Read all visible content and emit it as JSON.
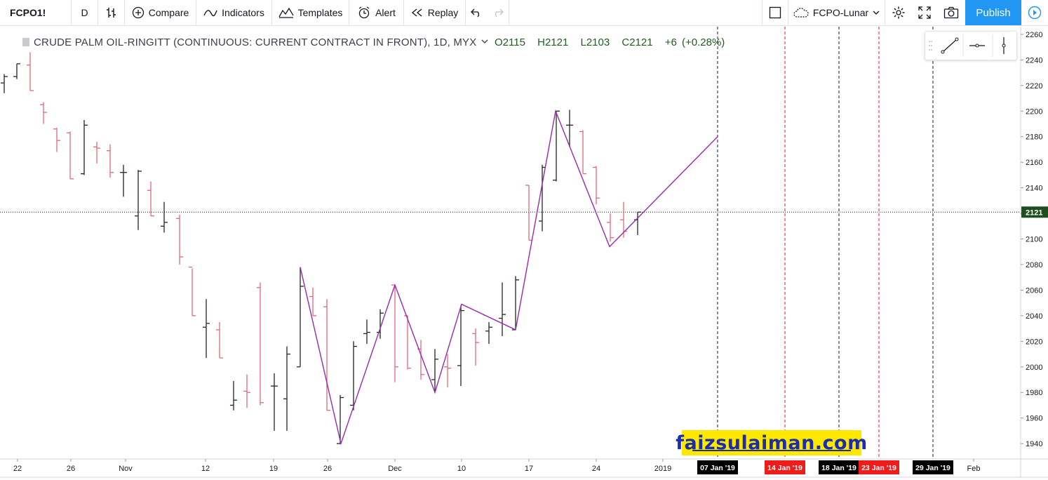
{
  "toolbar": {
    "symbol": "FCPO1!",
    "interval": "D",
    "compare": "Compare",
    "indicators": "Indicators",
    "templates": "Templates",
    "alert": "Alert",
    "replay": "Replay",
    "layout_name": "FCPO-Lunar",
    "publish": "Publish"
  },
  "legend": {
    "title": "CRUDE PALM OIL-RINGITT (CONTINUOUS: CURRENT CONTRACT IN FRONT), 1D, MYX",
    "open": "O2115",
    "high": "H2121",
    "low": "L2103",
    "close": "C2121",
    "change": "+6 (+0.28%)"
  },
  "price_label": "2121",
  "watermark": "faizsulaiman.com",
  "colors": {
    "up": "#1e2a1e",
    "down": "#e0687a",
    "zigzag": "#9c27b0",
    "publish": "#2196f3",
    "price_tag": "#1f4d1f"
  },
  "chart_data": {
    "type": "ohlc-bar",
    "ylim": [
      1928,
      2266
    ],
    "y_ticks": [
      1940,
      1960,
      1980,
      2000,
      2020,
      2040,
      2060,
      2080,
      2100,
      2120,
      2140,
      2160,
      2180,
      2200,
      2220,
      2240,
      2260
    ],
    "x_ticks": [
      {
        "label": "22",
        "x": 25
      },
      {
        "label": "26",
        "x": 101
      },
      {
        "label": "Nov",
        "x": 179
      },
      {
        "label": "12",
        "x": 293
      },
      {
        "label": "19",
        "x": 390
      },
      {
        "label": "26",
        "x": 467
      },
      {
        "label": "Dec",
        "x": 563
      },
      {
        "label": "10",
        "x": 658
      },
      {
        "label": "17",
        "x": 754
      },
      {
        "label": "24",
        "x": 850
      },
      {
        "label": "2019",
        "x": 945
      },
      {
        "label": "Feb",
        "x": 1388
      }
    ],
    "date_markers": [
      {
        "label": "07 Jan '19",
        "x": 1023,
        "style": "black"
      },
      {
        "label": "14 Jan '19",
        "x": 1119,
        "style": "red"
      },
      {
        "label": "18 Jan '19",
        "x": 1196,
        "style": "black"
      },
      {
        "label": "23 Jan '19",
        "x": 1253,
        "style": "red"
      },
      {
        "label": "29 Jan '19",
        "x": 1330,
        "style": "black"
      }
    ],
    "last_price": 2121,
    "zigzag": [
      [
        428,
        2078
      ],
      [
        486,
        1940
      ],
      [
        563,
        2064
      ],
      [
        620,
        1980
      ],
      [
        658,
        2049
      ],
      [
        735,
        2029
      ],
      [
        792,
        2200
      ],
      [
        869,
        2094
      ],
      [
        1023,
        2180
      ]
    ],
    "bars": [
      [
        6,
        2222,
        2229,
        2214,
        2227
      ],
      [
        24,
        2227,
        2237,
        2225,
        2237
      ],
      [
        43,
        2236,
        2246,
        2216,
        2216
      ],
      [
        62,
        2205,
        2207,
        2190,
        2199
      ],
      [
        81,
        2186,
        2187,
        2168,
        2177
      ],
      [
        100,
        2183,
        2184,
        2147,
        2147
      ],
      [
        120,
        2151,
        2193,
        2150,
        2189
      ],
      [
        138,
        2172,
        2176,
        2159,
        2171
      ],
      [
        157,
        2169,
        2174,
        2148,
        2152
      ],
      [
        176,
        2152,
        2158,
        2133,
        2152
      ],
      [
        197,
        2118,
        2154,
        2107,
        2153
      ],
      [
        215,
        2138,
        2145,
        2118,
        2118
      ],
      [
        234,
        2110,
        2129,
        2105,
        2113
      ],
      [
        256,
        2116,
        2119,
        2080,
        2086
      ],
      [
        274,
        2078,
        2077,
        2040,
        2040
      ],
      [
        294,
        2031,
        2053,
        2007,
        2034
      ],
      [
        313,
        2029,
        2035,
        2007,
        2007
      ],
      [
        333,
        1970,
        1989,
        1966,
        1974
      ],
      [
        352,
        1981,
        1994,
        1968,
        1980
      ],
      [
        371,
        2062,
        2066,
        1970,
        1972
      ],
      [
        391,
        1985,
        1995,
        1950,
        1985
      ],
      [
        409,
        1975,
        2016,
        1950,
        2010
      ],
      [
        428,
        2000,
        2078,
        2000,
        2063
      ],
      [
        446,
        2055,
        2062,
        2040,
        2040
      ],
      [
        466,
        2047,
        2053,
        1966,
        1966
      ],
      [
        485,
        1940,
        1978,
        1940,
        1976
      ],
      [
        504,
        1970,
        2020,
        1966,
        2016
      ],
      [
        523,
        2026,
        2037,
        2018,
        2027
      ],
      [
        542,
        2027,
        2045,
        2022,
        2042
      ],
      [
        563,
        2064,
        2064,
        1988,
        2000
      ],
      [
        581,
        2040,
        2040,
        1998,
        1999
      ],
      [
        600,
        2014,
        2021,
        1990,
        1994
      ],
      [
        620,
        1990,
        2014,
        1980,
        2006
      ],
      [
        638,
        2000,
        2010,
        1984,
        1999
      ],
      [
        657,
        2001,
        2048,
        1985,
        2044
      ],
      [
        678,
        2026,
        2030,
        2001,
        2019
      ],
      [
        697,
        2028,
        2035,
        2018,
        2031
      ],
      [
        716,
        2038,
        2066,
        2024,
        2041
      ],
      [
        735,
        2029,
        2071,
        2029,
        2068
      ],
      [
        754,
        2142,
        2142,
        2099,
        2099
      ],
      [
        773,
        2114,
        2158,
        2106,
        2156
      ],
      [
        793,
        2146,
        2200,
        2145,
        2200
      ],
      [
        812,
        2189,
        2201,
        2172,
        2189
      ],
      [
        831,
        2184,
        2185,
        2151,
        2151
      ],
      [
        850,
        2156,
        2157,
        2127,
        2132
      ],
      [
        870,
        2113,
        2120,
        2098,
        2101
      ],
      [
        889,
        2115,
        2129,
        2101,
        2106
      ],
      [
        909,
        2115,
        2121,
        2103,
        2121
      ]
    ]
  }
}
